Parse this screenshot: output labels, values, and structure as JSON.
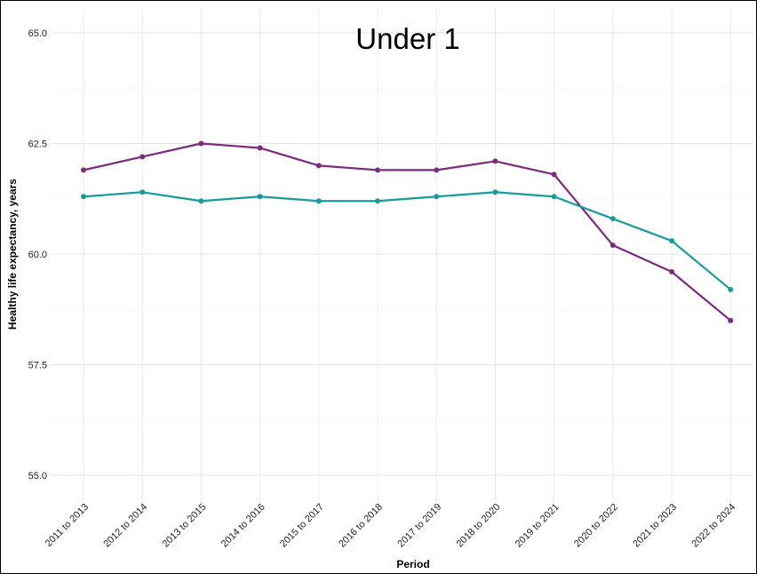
{
  "chart_data": {
    "type": "line",
    "title": "Under 1",
    "xlabel": "Period",
    "ylabel": "Healthy life expectancy, years",
    "categories": [
      "2011 to 2013",
      "2012 to 2014",
      "2013 to 2015",
      "2014 to 2016",
      "2015 to 2017",
      "2016 to 2018",
      "2017 to 2019",
      "2018 to 2020",
      "2019 to 2021",
      "2020 to 2022",
      "2021 to 2023",
      "2022 to 2024"
    ],
    "yticks": [
      "55.0",
      "57.5",
      "60.0",
      "62.5",
      "65.0"
    ],
    "ylim": [
      55.0,
      65.0
    ],
    "grid": true,
    "legend": "none",
    "series": [
      {
        "color": "#7b2a7e",
        "values": [
          61.9,
          62.2,
          62.5,
          62.4,
          62.0,
          61.9,
          61.9,
          62.1,
          61.8,
          60.2,
          59.6,
          58.5
        ]
      },
      {
        "color": "#179c9a",
        "values": [
          61.3,
          61.4,
          61.2,
          61.3,
          61.2,
          61.2,
          61.3,
          61.4,
          61.3,
          60.8,
          60.3,
          59.2
        ]
      }
    ]
  }
}
